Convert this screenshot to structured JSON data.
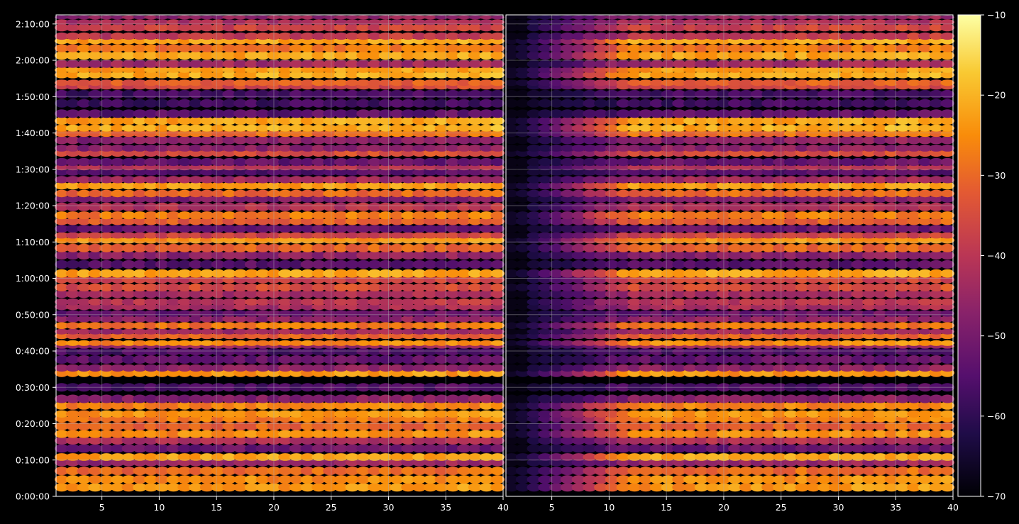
{
  "chart_data": [
    {
      "type": "heatmap",
      "title": "",
      "xlabel": "",
      "ylabel": "",
      "xlim": [
        1,
        40
      ],
      "ylim": [
        0,
        7950
      ],
      "x_ticks": [
        5,
        10,
        15,
        20,
        25,
        30,
        35,
        40
      ],
      "x_tick_labels": [
        "5",
        "10",
        "15",
        "20",
        "25",
        "30",
        "35",
        "40"
      ],
      "y_ticks": [
        0,
        600,
        1200,
        1800,
        2400,
        3000,
        3600,
        4200,
        4800,
        5400,
        6000,
        6600,
        7200,
        7800
      ],
      "y_tick_labels": [
        "0:00:00",
        "0:10:00",
        "0:20:00",
        "0:30:00",
        "0:40:00",
        "0:50:00",
        "1:00:00",
        "1:10:00",
        "1:20:00",
        "1:30:00",
        "1:40:00",
        "1:50:00",
        "2:00:00",
        "2:10:00"
      ],
      "grid": true,
      "band_source": "strong",
      "noise": "none"
    },
    {
      "type": "heatmap",
      "title": "",
      "xlabel": "",
      "ylabel": "",
      "xlim": [
        1,
        40
      ],
      "ylim": [
        0,
        7950
      ],
      "x_ticks": [
        5,
        10,
        15,
        20,
        25,
        30,
        35,
        40
      ],
      "x_tick_labels": [
        "5",
        "10",
        "15",
        "20",
        "25",
        "30",
        "35",
        "40"
      ],
      "grid": true,
      "band_source": "strong",
      "noise": "dark-onset-low-x"
    }
  ],
  "bands": [
    {
      "t": 150,
      "v": -24
    },
    {
      "t": 280,
      "v": -25
    },
    {
      "t": 420,
      "v": -30
    },
    {
      "t": 560,
      "v": -45
    },
    {
      "t": 650,
      "v": -22
    },
    {
      "t": 790,
      "v": -52
    },
    {
      "t": 920,
      "v": -42
    },
    {
      "t": 1030,
      "v": -25
    },
    {
      "t": 1160,
      "v": -31
    },
    {
      "t": 1280,
      "v": -27
    },
    {
      "t": 1360,
      "v": -24
    },
    {
      "t": 1500,
      "v": -26
    },
    {
      "t": 1610,
      "v": -48
    },
    {
      "t": 1800,
      "v": -56
    },
    {
      "t": 2040,
      "v": -24
    },
    {
      "t": 2120,
      "v": -47
    },
    {
      "t": 2260,
      "v": -53
    },
    {
      "t": 2390,
      "v": -56
    },
    {
      "t": 2480,
      "v": -45
    },
    {
      "t": 2530,
      "v": -25
    },
    {
      "t": 2650,
      "v": -31
    },
    {
      "t": 2720,
      "v": -44
    },
    {
      "t": 2820,
      "v": -28
    },
    {
      "t": 2930,
      "v": -47
    },
    {
      "t": 3020,
      "v": -52
    },
    {
      "t": 3130,
      "v": -43
    },
    {
      "t": 3210,
      "v": -40
    },
    {
      "t": 3340,
      "v": -43
    },
    {
      "t": 3450,
      "v": -35
    },
    {
      "t": 3580,
      "v": -37
    },
    {
      "t": 3680,
      "v": -22
    },
    {
      "t": 3830,
      "v": -54
    },
    {
      "t": 3980,
      "v": -47
    },
    {
      "t": 4100,
      "v": -31
    },
    {
      "t": 4230,
      "v": -24
    },
    {
      "t": 4310,
      "v": -37
    },
    {
      "t": 4420,
      "v": -53
    },
    {
      "t": 4540,
      "v": -32
    },
    {
      "t": 4640,
      "v": -27
    },
    {
      "t": 4780,
      "v": -41
    },
    {
      "t": 4910,
      "v": -49
    },
    {
      "t": 5000,
      "v": -30
    },
    {
      "t": 5130,
      "v": -23
    },
    {
      "t": 5230,
      "v": -44
    },
    {
      "t": 5350,
      "v": -55
    },
    {
      "t": 5430,
      "v": -41
    },
    {
      "t": 5520,
      "v": -53
    },
    {
      "t": 5670,
      "v": -35
    },
    {
      "t": 5750,
      "v": -47
    },
    {
      "t": 5880,
      "v": -47
    },
    {
      "t": 5990,
      "v": -29
    },
    {
      "t": 6080,
      "v": -21
    },
    {
      "t": 6200,
      "v": -22
    },
    {
      "t": 6320,
      "v": -54
    },
    {
      "t": 6490,
      "v": -58
    },
    {
      "t": 6640,
      "v": -57
    },
    {
      "t": 6770,
      "v": -36
    },
    {
      "t": 6830,
      "v": -32
    },
    {
      "t": 6960,
      "v": -21
    },
    {
      "t": 7040,
      "v": -23
    },
    {
      "t": 7140,
      "v": -44
    },
    {
      "t": 7280,
      "v": -22
    },
    {
      "t": 7400,
      "v": -28
    },
    {
      "t": 7520,
      "v": -22
    },
    {
      "t": 7600,
      "v": -39
    },
    {
      "t": 7740,
      "v": -37
    },
    {
      "t": 7830,
      "v": -42
    },
    {
      "t": 7910,
      "v": -46
    }
  ],
  "colorbar": {
    "colormap": "inferno",
    "range": [
      -70,
      -10
    ],
    "ticks": [
      -70,
      -60,
      -50,
      -40,
      -30,
      -20,
      -10
    ],
    "tick_labels": [
      "−70",
      "−60",
      "−50",
      "−40",
      "−30",
      "−20",
      "−10"
    ]
  },
  "colors": {
    "background": "#000000",
    "axes_frame": "#ffffff",
    "grid": "#b0b0b0",
    "tick_text": "#ffffff"
  }
}
